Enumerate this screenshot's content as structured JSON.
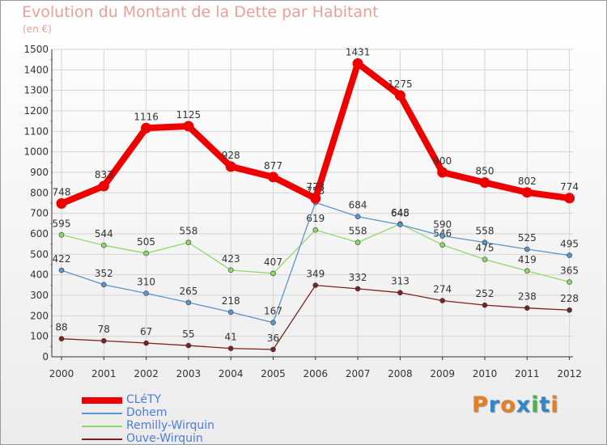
{
  "title": "Evolution du Montant de la Dette par Habitant",
  "subtitle": "(en €)",
  "brand": "Proxiti",
  "brand_colors": [
    "#e67e22",
    "#2f86c9",
    "#e67e22",
    "#2f86c9",
    "#4caf50",
    "#2f86c9",
    "#e67e22"
  ],
  "chart_data": {
    "type": "line",
    "x": [
      "2000",
      "2001",
      "2002",
      "2003",
      "2004",
      "2005",
      "2006",
      "2007",
      "2008",
      "2009",
      "2010",
      "2011",
      "2012"
    ],
    "ylim": [
      0,
      1500
    ],
    "yticks": [
      0,
      100,
      200,
      300,
      400,
      500,
      600,
      700,
      800,
      900,
      1000,
      1100,
      1200,
      1300,
      1400,
      1500
    ],
    "grid": true,
    "legend_position": "bottom-left",
    "series": [
      {
        "name": "CLéTY",
        "color": "#ee0000",
        "values": [
          748,
          833,
          1116,
          1125,
          928,
          877,
          773,
          1431,
          1275,
          900,
          850,
          802,
          774
        ],
        "labels": [
          "748",
          "833",
          "1116",
          "1125",
          "928",
          "877",
          "773",
          "1431",
          "1275",
          "900",
          "850",
          "802",
          "774"
        ]
      },
      {
        "name": "Dohem",
        "color": "#5b95cc",
        "values": [
          422,
          352,
          310,
          265,
          218,
          167,
          753,
          684,
          645,
          590,
          558,
          525,
          495
        ],
        "labels": [
          "422",
          "352",
          "310",
          "265",
          "218",
          "167",
          "753",
          "684",
          "645",
          "590",
          "558",
          "525",
          "495"
        ]
      },
      {
        "name": "Remilly-Wirquin",
        "color": "#90d86a",
        "values": [
          595,
          544,
          505,
          558,
          423,
          407,
          619,
          558,
          648,
          546,
          475,
          419,
          365
        ],
        "labels": [
          "595",
          "544",
          "505",
          "558",
          "423",
          "407",
          "619",
          "558",
          "648",
          "546",
          "475",
          "419",
          "365"
        ]
      },
      {
        "name": "Ouve-Wirquin",
        "color": "#7a2222",
        "values": [
          88,
          78,
          67,
          55,
          41,
          36,
          349,
          332,
          313,
          274,
          252,
          238,
          228
        ],
        "labels": [
          "88",
          "78",
          "67",
          "55",
          "41",
          "36",
          "349",
          "332",
          "313",
          "274",
          "252",
          "238",
          "228"
        ]
      }
    ]
  }
}
